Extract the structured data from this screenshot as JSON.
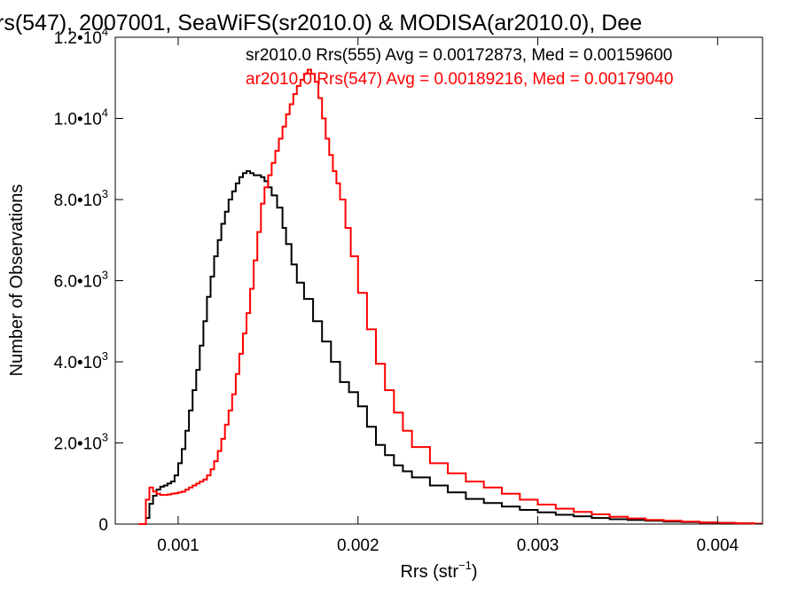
{
  "chart_data": {
    "type": "line",
    "title": "rs(547), 2007001, SeaWiFS(sr2010.0) & MODISA(ar2010.0), Dee",
    "xlabel": {
      "main": "Rrs (str",
      "sup": "−1",
      "close": ")"
    },
    "ylabel": "Number of Observations",
    "xlim": [
      0.00065,
      0.00425
    ],
    "ylim": [
      0,
      12000
    ],
    "x_ticks": [
      {
        "value": 0.001,
        "label": "0.001"
      },
      {
        "value": 0.002,
        "label": "0.002"
      },
      {
        "value": 0.003,
        "label": "0.003"
      },
      {
        "value": 0.004,
        "label": "0.004"
      }
    ],
    "y_ticks": [
      {
        "value": 0,
        "mant": "0",
        "exp": ""
      },
      {
        "value": 2000,
        "mant": "2.0•10",
        "exp": "3"
      },
      {
        "value": 4000,
        "mant": "4.0•10",
        "exp": "3"
      },
      {
        "value": 6000,
        "mant": "6.0•10",
        "exp": "3"
      },
      {
        "value": 8000,
        "mant": "8.0•10",
        "exp": "3"
      },
      {
        "value": 10000,
        "mant": "1.0•10",
        "exp": "4"
      },
      {
        "value": 12000,
        "mant": "1.2•10",
        "exp": "4"
      }
    ],
    "legend_placement": "top-right",
    "grid": false,
    "series": [
      {
        "name": "sr2010.0 Rrs(555) Avg = 0.00172873, Med = 0.00159600",
        "color": "#000000",
        "x": [
          0.00078,
          0.0008,
          0.00082,
          0.00084,
          0.00086,
          0.00088,
          0.0009,
          0.00092,
          0.00094,
          0.00096,
          0.00098,
          0.001,
          0.00102,
          0.00104,
          0.00106,
          0.00108,
          0.0011,
          0.00112,
          0.00114,
          0.00116,
          0.00118,
          0.0012,
          0.00122,
          0.00124,
          0.00126,
          0.00128,
          0.0013,
          0.00132,
          0.00134,
          0.00136,
          0.00138,
          0.0014,
          0.00142,
          0.00144,
          0.00146,
          0.00148,
          0.0015,
          0.00152,
          0.00155,
          0.00158,
          0.0016,
          0.00163,
          0.00166,
          0.0017,
          0.00175,
          0.0018,
          0.00185,
          0.0019,
          0.00195,
          0.002,
          0.00205,
          0.0021,
          0.00215,
          0.0022,
          0.00225,
          0.0023,
          0.0024,
          0.0025,
          0.0026,
          0.0027,
          0.0028,
          0.0029,
          0.003,
          0.0031,
          0.0032,
          0.0033,
          0.0034,
          0.0035,
          0.0036,
          0.0037,
          0.0038,
          0.0039,
          0.004,
          0.0041,
          0.0042
        ],
        "values": [
          0,
          0,
          150,
          500,
          700,
          850,
          920,
          950,
          1000,
          1050,
          1200,
          1500,
          1850,
          2300,
          2800,
          3300,
          3800,
          4400,
          5000,
          5600,
          6100,
          6600,
          7000,
          7400,
          7700,
          8000,
          8200,
          8400,
          8550,
          8650,
          8700,
          8650,
          8600,
          8600,
          8550,
          8450,
          8300,
          8100,
          7800,
          7300,
          6900,
          6400,
          5950,
          5550,
          5000,
          4500,
          4000,
          3500,
          3250,
          2900,
          2400,
          1950,
          1700,
          1450,
          1300,
          1150,
          950,
          780,
          620,
          520,
          430,
          350,
          290,
          230,
          190,
          150,
          120,
          100,
          80,
          60,
          50,
          40,
          30,
          20,
          10
        ]
      },
      {
        "name": "ar2010.0 Rrs(547) Avg = 0.00189216, Med = 0.00179040",
        "color": "#ff0000",
        "x": [
          0.00078,
          0.0008,
          0.00082,
          0.00084,
          0.00086,
          0.00088,
          0.0009,
          0.00092,
          0.00094,
          0.00096,
          0.00098,
          0.001,
          0.00102,
          0.00104,
          0.00106,
          0.00108,
          0.0011,
          0.00112,
          0.00114,
          0.00116,
          0.00118,
          0.0012,
          0.00122,
          0.00124,
          0.00126,
          0.00128,
          0.0013,
          0.00132,
          0.00134,
          0.00136,
          0.00138,
          0.0014,
          0.00142,
          0.00144,
          0.00146,
          0.00148,
          0.0015,
          0.00152,
          0.00154,
          0.00156,
          0.00158,
          0.0016,
          0.00162,
          0.00164,
          0.00166,
          0.00168,
          0.0017,
          0.00172,
          0.00174,
          0.00176,
          0.00178,
          0.0018,
          0.00182,
          0.00184,
          0.00186,
          0.00188,
          0.0019,
          0.00193,
          0.00196,
          0.002,
          0.00205,
          0.0021,
          0.00215,
          0.0022,
          0.00225,
          0.0023,
          0.0024,
          0.0025,
          0.0026,
          0.0027,
          0.0028,
          0.0029,
          0.003,
          0.0031,
          0.0032,
          0.0033,
          0.0034,
          0.0035,
          0.0036,
          0.0037,
          0.0038,
          0.0039,
          0.004,
          0.0041,
          0.0042
        ],
        "values": [
          0,
          0,
          600,
          900,
          800,
          750,
          720,
          720,
          730,
          750,
          760,
          780,
          800,
          850,
          900,
          950,
          1000,
          1050,
          1100,
          1200,
          1350,
          1550,
          1800,
          2100,
          2450,
          2800,
          3200,
          3700,
          4200,
          4700,
          5200,
          5800,
          6500,
          7200,
          7900,
          8300,
          8600,
          8900,
          9200,
          9500,
          9800,
          10100,
          10350,
          10600,
          10800,
          10950,
          11100,
          11200,
          11100,
          10900,
          10500,
          10000,
          9500,
          9100,
          8700,
          8400,
          8000,
          7300,
          6600,
          5700,
          4800,
          3950,
          3300,
          2750,
          2300,
          1900,
          1500,
          1250,
          1050,
          900,
          750,
          600,
          480,
          380,
          300,
          240,
          180,
          140,
          100,
          80,
          60,
          40,
          30,
          20,
          10
        ]
      }
    ]
  }
}
